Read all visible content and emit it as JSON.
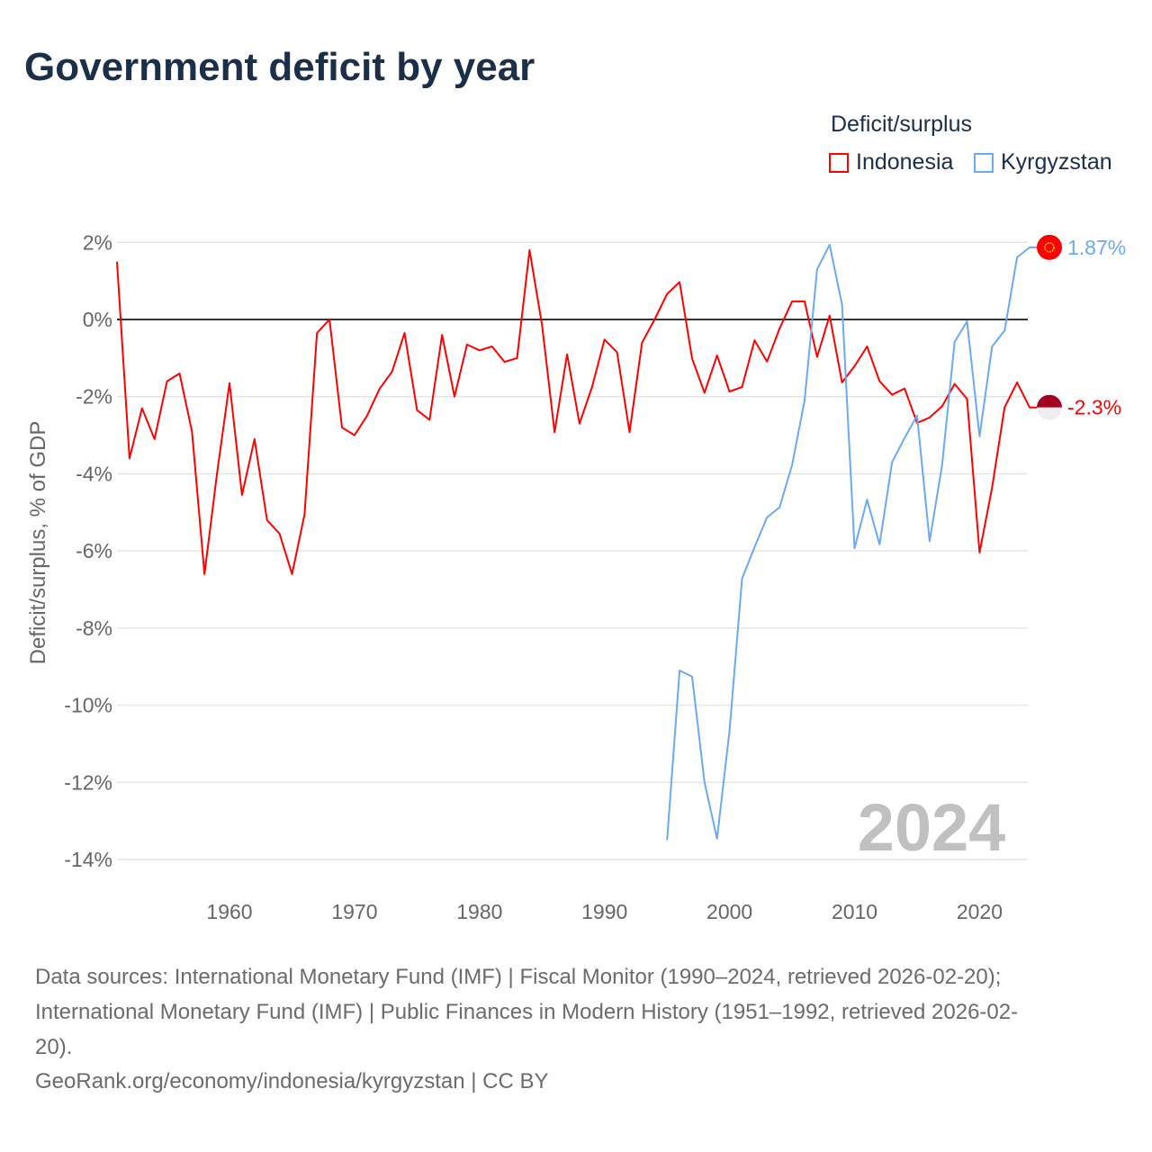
{
  "title": "Government deficit by year",
  "legend": {
    "title": "Deficit/surplus",
    "items": [
      {
        "name": "Indonesia",
        "color": "#ff0000"
      },
      {
        "name": "Kyrgyzstan",
        "color": "#6aaaf0"
      }
    ]
  },
  "chart_data": {
    "type": "line",
    "title": "Government deficit by year",
    "xlabel": "",
    "ylabel": "Deficit/surplus, % of GDP",
    "xlim": [
      1951,
      2024
    ],
    "ylim": [
      -14,
      2
    ],
    "yticks": [
      2,
      0,
      -2,
      -4,
      -6,
      -8,
      -10,
      -12,
      -14
    ],
    "ytick_labels": [
      "2%",
      "0%",
      "-2%",
      "-4%",
      "-6%",
      "-8%",
      "-10%",
      "-12%",
      "-14%"
    ],
    "xticks": [
      1960,
      1970,
      1980,
      1990,
      2000,
      2010,
      2020
    ],
    "xtick_labels": [
      "1960",
      "1970",
      "1980",
      "1990",
      "2000",
      "2010",
      "2020"
    ],
    "grid": true,
    "legend_position": "top-right",
    "year_watermark": "2024",
    "series": [
      {
        "name": "Indonesia",
        "color": "#ff0000",
        "end_label": "-2.3%",
        "start_year": 1951,
        "values": [
          1.5,
          -3.6,
          -2.3,
          -3.1,
          -1.6,
          -1.4,
          -2.9,
          -6.6,
          -4.0,
          -1.65,
          -4.55,
          -3.1,
          -5.2,
          -5.55,
          -6.6,
          -5.05,
          -0.35,
          0.0,
          -2.8,
          -3.0,
          -2.5,
          -1.8,
          -1.35,
          -0.35,
          -2.35,
          -2.6,
          -0.4,
          -2.0,
          -0.65,
          -0.8,
          -0.7,
          -1.1,
          -1.0,
          1.8,
          -0.15,
          -2.92,
          -0.9,
          -2.7,
          -1.75,
          -0.52,
          -0.85,
          -2.92,
          -0.6,
          0.0,
          0.66,
          0.97,
          -1.01,
          -1.9,
          -0.93,
          -1.87,
          -1.75,
          -0.54,
          -1.09,
          -0.23,
          0.47,
          0.47,
          -0.97,
          0.1,
          -1.63,
          -1.21,
          -0.7,
          -1.6,
          -1.95,
          -1.79,
          -2.68,
          -2.54,
          -2.25,
          -1.67,
          -2.06,
          -6.04,
          -4.36,
          -2.28,
          -1.63,
          -2.28
        ]
      },
      {
        "name": "Kyrgyzstan",
        "color": "#6aaaf0",
        "end_label": "1.87%",
        "start_year": 1995,
        "values": [
          -13.5,
          -9.1,
          -9.26,
          -12.0,
          -13.46,
          -10.66,
          -6.72,
          -5.9,
          -5.13,
          -4.87,
          -3.77,
          -2.1,
          1.3,
          1.94,
          0.39,
          -5.93,
          -4.67,
          -5.83,
          -3.7,
          -3.07,
          -2.49,
          -5.75,
          -3.77,
          -0.58,
          -0.05,
          -3.03,
          -0.7,
          -0.29,
          1.61,
          1.87
        ]
      }
    ]
  },
  "footer": {
    "line1": "Data sources: International Monetary Fund (IMF) | Fiscal Monitor (1990–2024, retrieved 2026-02-20);",
    "line2": "International Monetary Fund (IMF) | Public Finances in Modern History (1951–1992, retrieved 2026-02-",
    "line3": "20).",
    "line4": "GeoRank.org/economy/indonesia/kyrgyzstan | CC BY"
  }
}
